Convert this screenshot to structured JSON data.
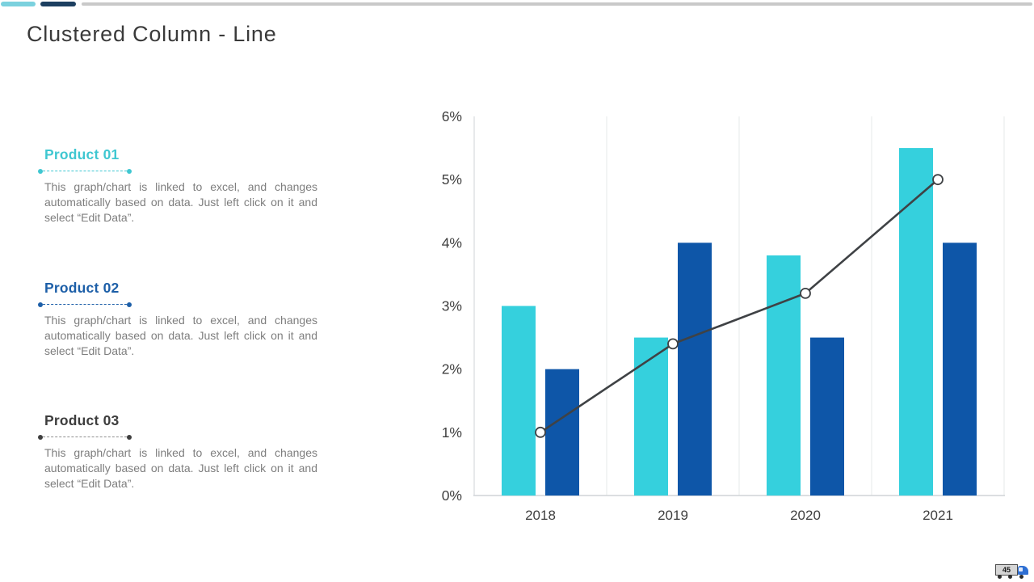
{
  "slide": {
    "title": "Clustered Column - Line",
    "page_number": "45"
  },
  "theme": {
    "topbar_cyan": "#7bd1de",
    "topbar_navy": "#1c3f60",
    "topbar_gray": "#c9c9c9",
    "title_color": "#3a3a3a",
    "body_text_color": "#7e7e7e"
  },
  "products": [
    {
      "label": "Product 01",
      "accent": "#3fc7d1",
      "dot_color": "#3fc7d1",
      "description": "This graph/chart is linked to excel, and changes automatically based on data. Just left click on it and select “Edit Data”."
    },
    {
      "label": "Product 02",
      "accent": "#1d5fa8",
      "dot_color": "#1d5fa8",
      "description": "This graph/chart is linked to excel, and changes automatically based on data. Just left click on it and select “Edit Data”."
    },
    {
      "label": "Product 03",
      "accent": "#3d3d3d",
      "dash_color": "#8f8f8f",
      "dot_color": "#3f3f3f",
      "description": "This graph/chart is linked to excel, and changes automatically based on data. Just left click on it and select “Edit Data”."
    }
  ],
  "chart_data": {
    "type": "combo-clustered-column-line",
    "categories": [
      "2018",
      "2019",
      "2020",
      "2021"
    ],
    "series": [
      {
        "name": "Product 01",
        "type": "bar",
        "color": "#35d0dd",
        "values": [
          3,
          2.5,
          3.8,
          5.5
        ]
      },
      {
        "name": "Product 02",
        "type": "bar",
        "color": "#0e56a8",
        "values": [
          2,
          4,
          2.5,
          4
        ]
      },
      {
        "name": "Product 03",
        "type": "line",
        "color": "#3f4245",
        "values": [
          1,
          2.4,
          3.2,
          5
        ]
      }
    ],
    "ylim": [
      0,
      6
    ],
    "ytick_labels": [
      "0%",
      "1%",
      "2%",
      "3%",
      "4%",
      "5%",
      "6%"
    ],
    "grid": "vertical-only",
    "legend": "none",
    "marker": "open-circle",
    "gridline_color": "#e6e8ea",
    "axis_color": "#cfd3d7"
  }
}
